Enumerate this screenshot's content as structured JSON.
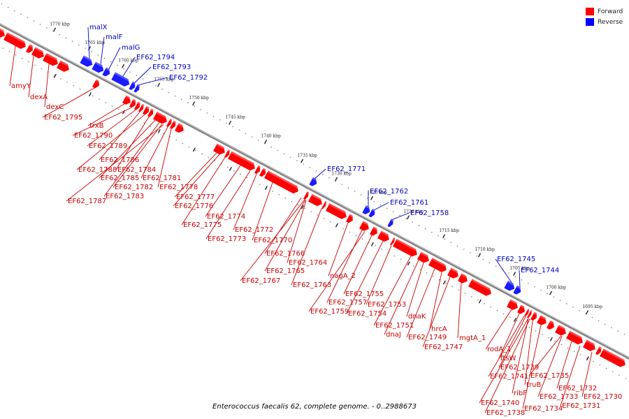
{
  "caption": "Enterococcus faecalis 62, complete genome. - 0..2988673",
  "legend": [
    {
      "label": "Forward",
      "color": "#ff0000"
    },
    {
      "label": "Reverse",
      "color": "#0000ff"
    }
  ],
  "colors": {
    "forward": "#ff0000",
    "reverse": "#1a1aff",
    "backbone": "#808080",
    "forward_label": "#cc0000",
    "reverse_label": "#0000cc"
  },
  "ticks": [
    "1770 kbp",
    "1765 kbp",
    "1760 kbp",
    "1755 kbp",
    "1750 kbp",
    "1745 kbp",
    "1740 kbp",
    "1735 kbp",
    "1730 kbp",
    "1725 kbp",
    "1720 kbp",
    "1715 kbp",
    "1710 kbp",
    "1705 kbp",
    "1700 kbp",
    "1695 kbp"
  ],
  "genes": [
    {
      "label": "amyY",
      "strand": "forward"
    },
    {
      "label": "dexA",
      "strand": "forward"
    },
    {
      "label": "dexC",
      "strand": "forward"
    },
    {
      "label": "EF62_1795",
      "strand": "forward"
    },
    {
      "label": "malX",
      "strand": "reverse"
    },
    {
      "label": "malF",
      "strand": "reverse"
    },
    {
      "label": "malG",
      "strand": "reverse"
    },
    {
      "label": "EF62_1794",
      "strand": "reverse"
    },
    {
      "label": "EF62_1793",
      "strand": "reverse"
    },
    {
      "label": "EF62_1792",
      "strand": "reverse"
    },
    {
      "label": "trxB",
      "strand": "forward"
    },
    {
      "label": "EF62_1790",
      "strand": "forward"
    },
    {
      "label": "EF62_1789",
      "strand": "forward"
    },
    {
      "label": "EF62_1786",
      "strand": "forward"
    },
    {
      "label": "EF62_1788",
      "strand": "forward"
    },
    {
      "label": "EF62_1784",
      "strand": "forward"
    },
    {
      "label": "EF62_1785",
      "strand": "forward"
    },
    {
      "label": "EF62_1781",
      "strand": "forward"
    },
    {
      "label": "EF62_1782",
      "strand": "forward"
    },
    {
      "label": "EF62_1778",
      "strand": "forward"
    },
    {
      "label": "EF62_1783",
      "strand": "forward"
    },
    {
      "label": "EF62_1787",
      "strand": "forward"
    },
    {
      "label": "EF62_1777",
      "strand": "forward"
    },
    {
      "label": "EF62_1776",
      "strand": "forward"
    },
    {
      "label": "EF62_1774",
      "strand": "forward"
    },
    {
      "label": "EF62_1775",
      "strand": "forward"
    },
    {
      "label": "EF62_1772",
      "strand": "forward"
    },
    {
      "label": "EF62_1773",
      "strand": "forward"
    },
    {
      "label": "EF62_1770",
      "strand": "forward"
    },
    {
      "label": "EF62_1771",
      "strand": "reverse"
    },
    {
      "label": "EF62_1766",
      "strand": "forward"
    },
    {
      "label": "EF62_1764",
      "strand": "forward"
    },
    {
      "label": "EF62_1765",
      "strand": "forward"
    },
    {
      "label": "EF62_1767",
      "strand": "forward"
    },
    {
      "label": "EF62_1763",
      "strand": "forward"
    },
    {
      "label": "EF62_1762",
      "strand": "reverse"
    },
    {
      "label": "EF62_1761",
      "strand": "reverse"
    },
    {
      "label": "EF62_1758",
      "strand": "reverse"
    },
    {
      "label": "nagA_2",
      "strand": "forward"
    },
    {
      "label": "EF62_1755",
      "strand": "forward"
    },
    {
      "label": "EF62_1757",
      "strand": "forward"
    },
    {
      "label": "EF62_1753",
      "strand": "forward"
    },
    {
      "label": "EF62_1759",
      "strand": "forward"
    },
    {
      "label": "EF62_1754",
      "strand": "forward"
    },
    {
      "label": "dnaK",
      "strand": "forward"
    },
    {
      "label": "EF62_1751",
      "strand": "forward"
    },
    {
      "label": "dnaJ",
      "strand": "forward"
    },
    {
      "label": "hrcA",
      "strand": "forward"
    },
    {
      "label": "EF62_1749",
      "strand": "forward"
    },
    {
      "label": "EF62_1747",
      "strand": "forward"
    },
    {
      "label": "mgtA_1",
      "strand": "forward"
    },
    {
      "label": "EF62_1745",
      "strand": "reverse"
    },
    {
      "label": "EF62_1744",
      "strand": "reverse"
    },
    {
      "label": "rodA_1",
      "strand": "forward"
    },
    {
      "label": "ftsW",
      "strand": "forward"
    },
    {
      "label": "EF62_1739",
      "strand": "forward"
    },
    {
      "label": "EF62_1741",
      "strand": "forward"
    },
    {
      "label": "EF62_1735",
      "strand": "forward"
    },
    {
      "label": "truB",
      "strand": "forward"
    },
    {
      "label": "ribF",
      "strand": "forward"
    },
    {
      "label": "EF62_1732",
      "strand": "forward"
    },
    {
      "label": "EF62_1733",
      "strand": "forward"
    },
    {
      "label": "EF62_1730",
      "strand": "forward"
    },
    {
      "label": "EF62_1740",
      "strand": "forward"
    },
    {
      "label": "EF62_1734",
      "strand": "forward"
    },
    {
      "label": "EF62_1731",
      "strand": "forward"
    },
    {
      "label": "EF62_1738",
      "strand": "forward"
    }
  ]
}
